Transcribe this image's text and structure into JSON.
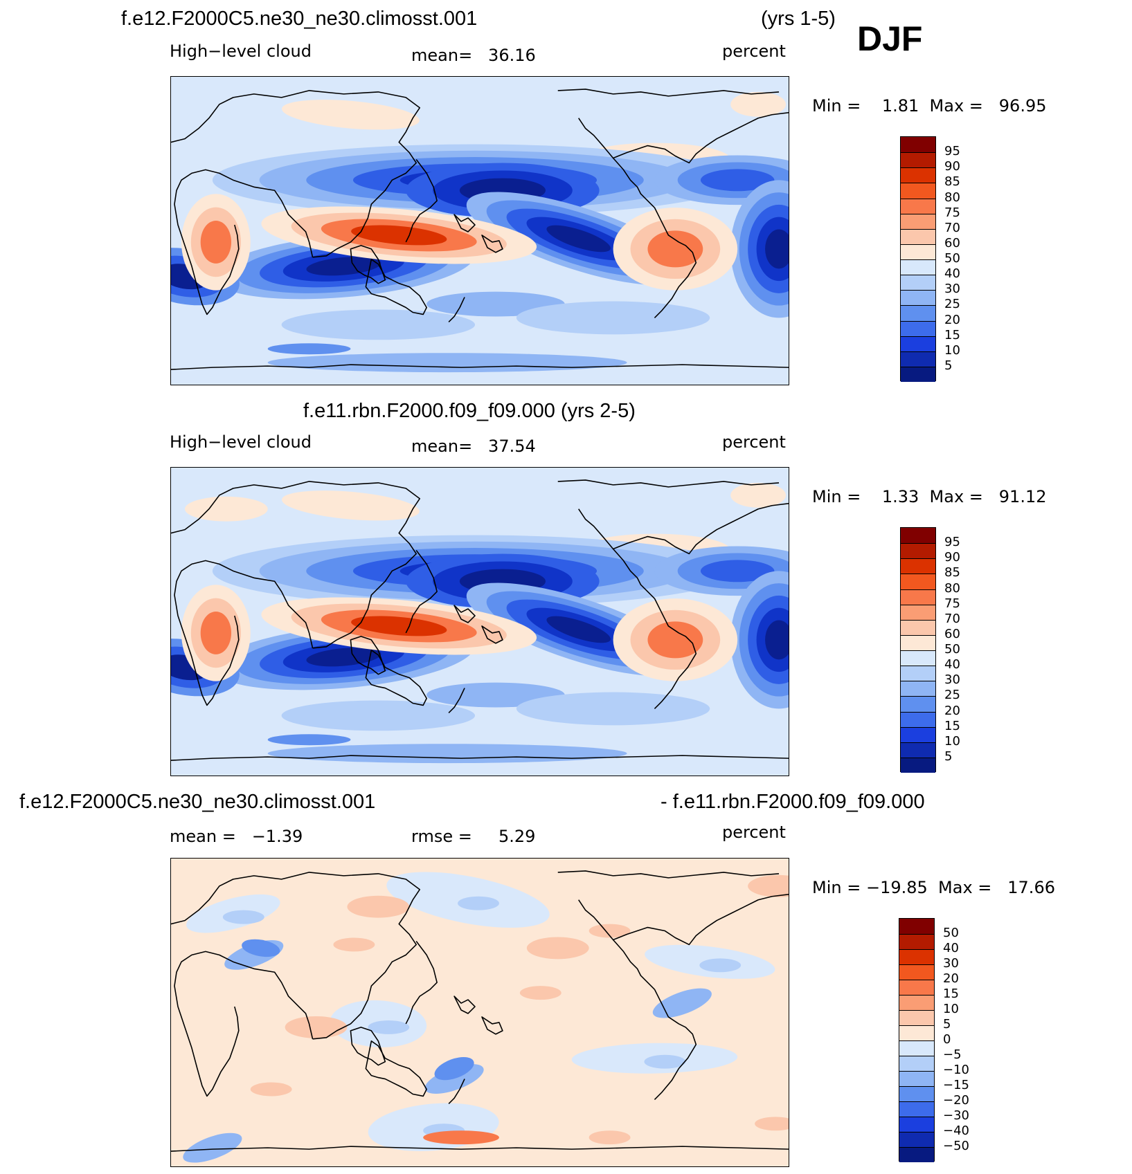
{
  "season": "DJF",
  "panels": [
    {
      "id": "top",
      "title_left": "f.e12.F2000C5.ne30_ne30.climosst.001",
      "title_right": "(yrs 1-5)",
      "variable": "High−level cloud",
      "mean_text": "mean=   36.16",
      "units": "percent",
      "minmax": "Min =    1.81  Max =   96.95",
      "map_bg": "#d9e8fb"
    },
    {
      "id": "middle",
      "title_center": "f.e11.rbn.F2000.f09_f09.000 (yrs 2-5)",
      "variable": "High−level cloud",
      "mean_text": "mean=   37.54",
      "units": "percent",
      "minmax": "Min =    1.33  Max =   91.12",
      "map_bg": "#d9e8fb"
    },
    {
      "id": "bottom",
      "title_left": "f.e12.F2000C5.ne30_ne30.climosst.001",
      "title_right": "- f.e11.rbn.F2000.f09_f09.000",
      "mean_text": "mean =   −1.39",
      "rmse_text": "rmse =     5.29",
      "units": "percent",
      "minmax": "Min = −19.85  Max =   17.66",
      "map_bg": "#fbe9dd"
    }
  ],
  "colorbar_levels": [
    "95",
    "90",
    "85",
    "80",
    "75",
    "70",
    "60",
    "50",
    "40",
    "30",
    "25",
    "20",
    "15",
    "10",
    "5"
  ],
  "colorbar_diff_levels": [
    "50",
    "40",
    "30",
    "20",
    "15",
    "10",
    "5",
    "0",
    "−5",
    "−10",
    "−15",
    "−20",
    "−30",
    "−40",
    "−50"
  ],
  "colorbar_colors": [
    "#800000",
    "#b31b00",
    "#db3200",
    "#f2581f",
    "#f8784a",
    "#fa9d74",
    "#fbc7ac",
    "#fde8d6",
    "#d8e8fb",
    "#b3cff8",
    "#8fb5f4",
    "#5f90ef",
    "#3d6ceb",
    "#1b3fdf",
    "#0f2bb0",
    "#071a80"
  ],
  "palette": {
    "lightblue": "#d9e8fb",
    "blue1": "#b3cff8",
    "blue2": "#8fb5f4",
    "blue3": "#5f90ef",
    "blue4": "#2f5ee6",
    "blue5": "#1034c8",
    "navy": "#0a1f90",
    "peach": "#fde8d6",
    "salmon": "#fbc7ac",
    "orange": "#f8784a",
    "red": "#db3200",
    "coast": "#000000"
  }
}
